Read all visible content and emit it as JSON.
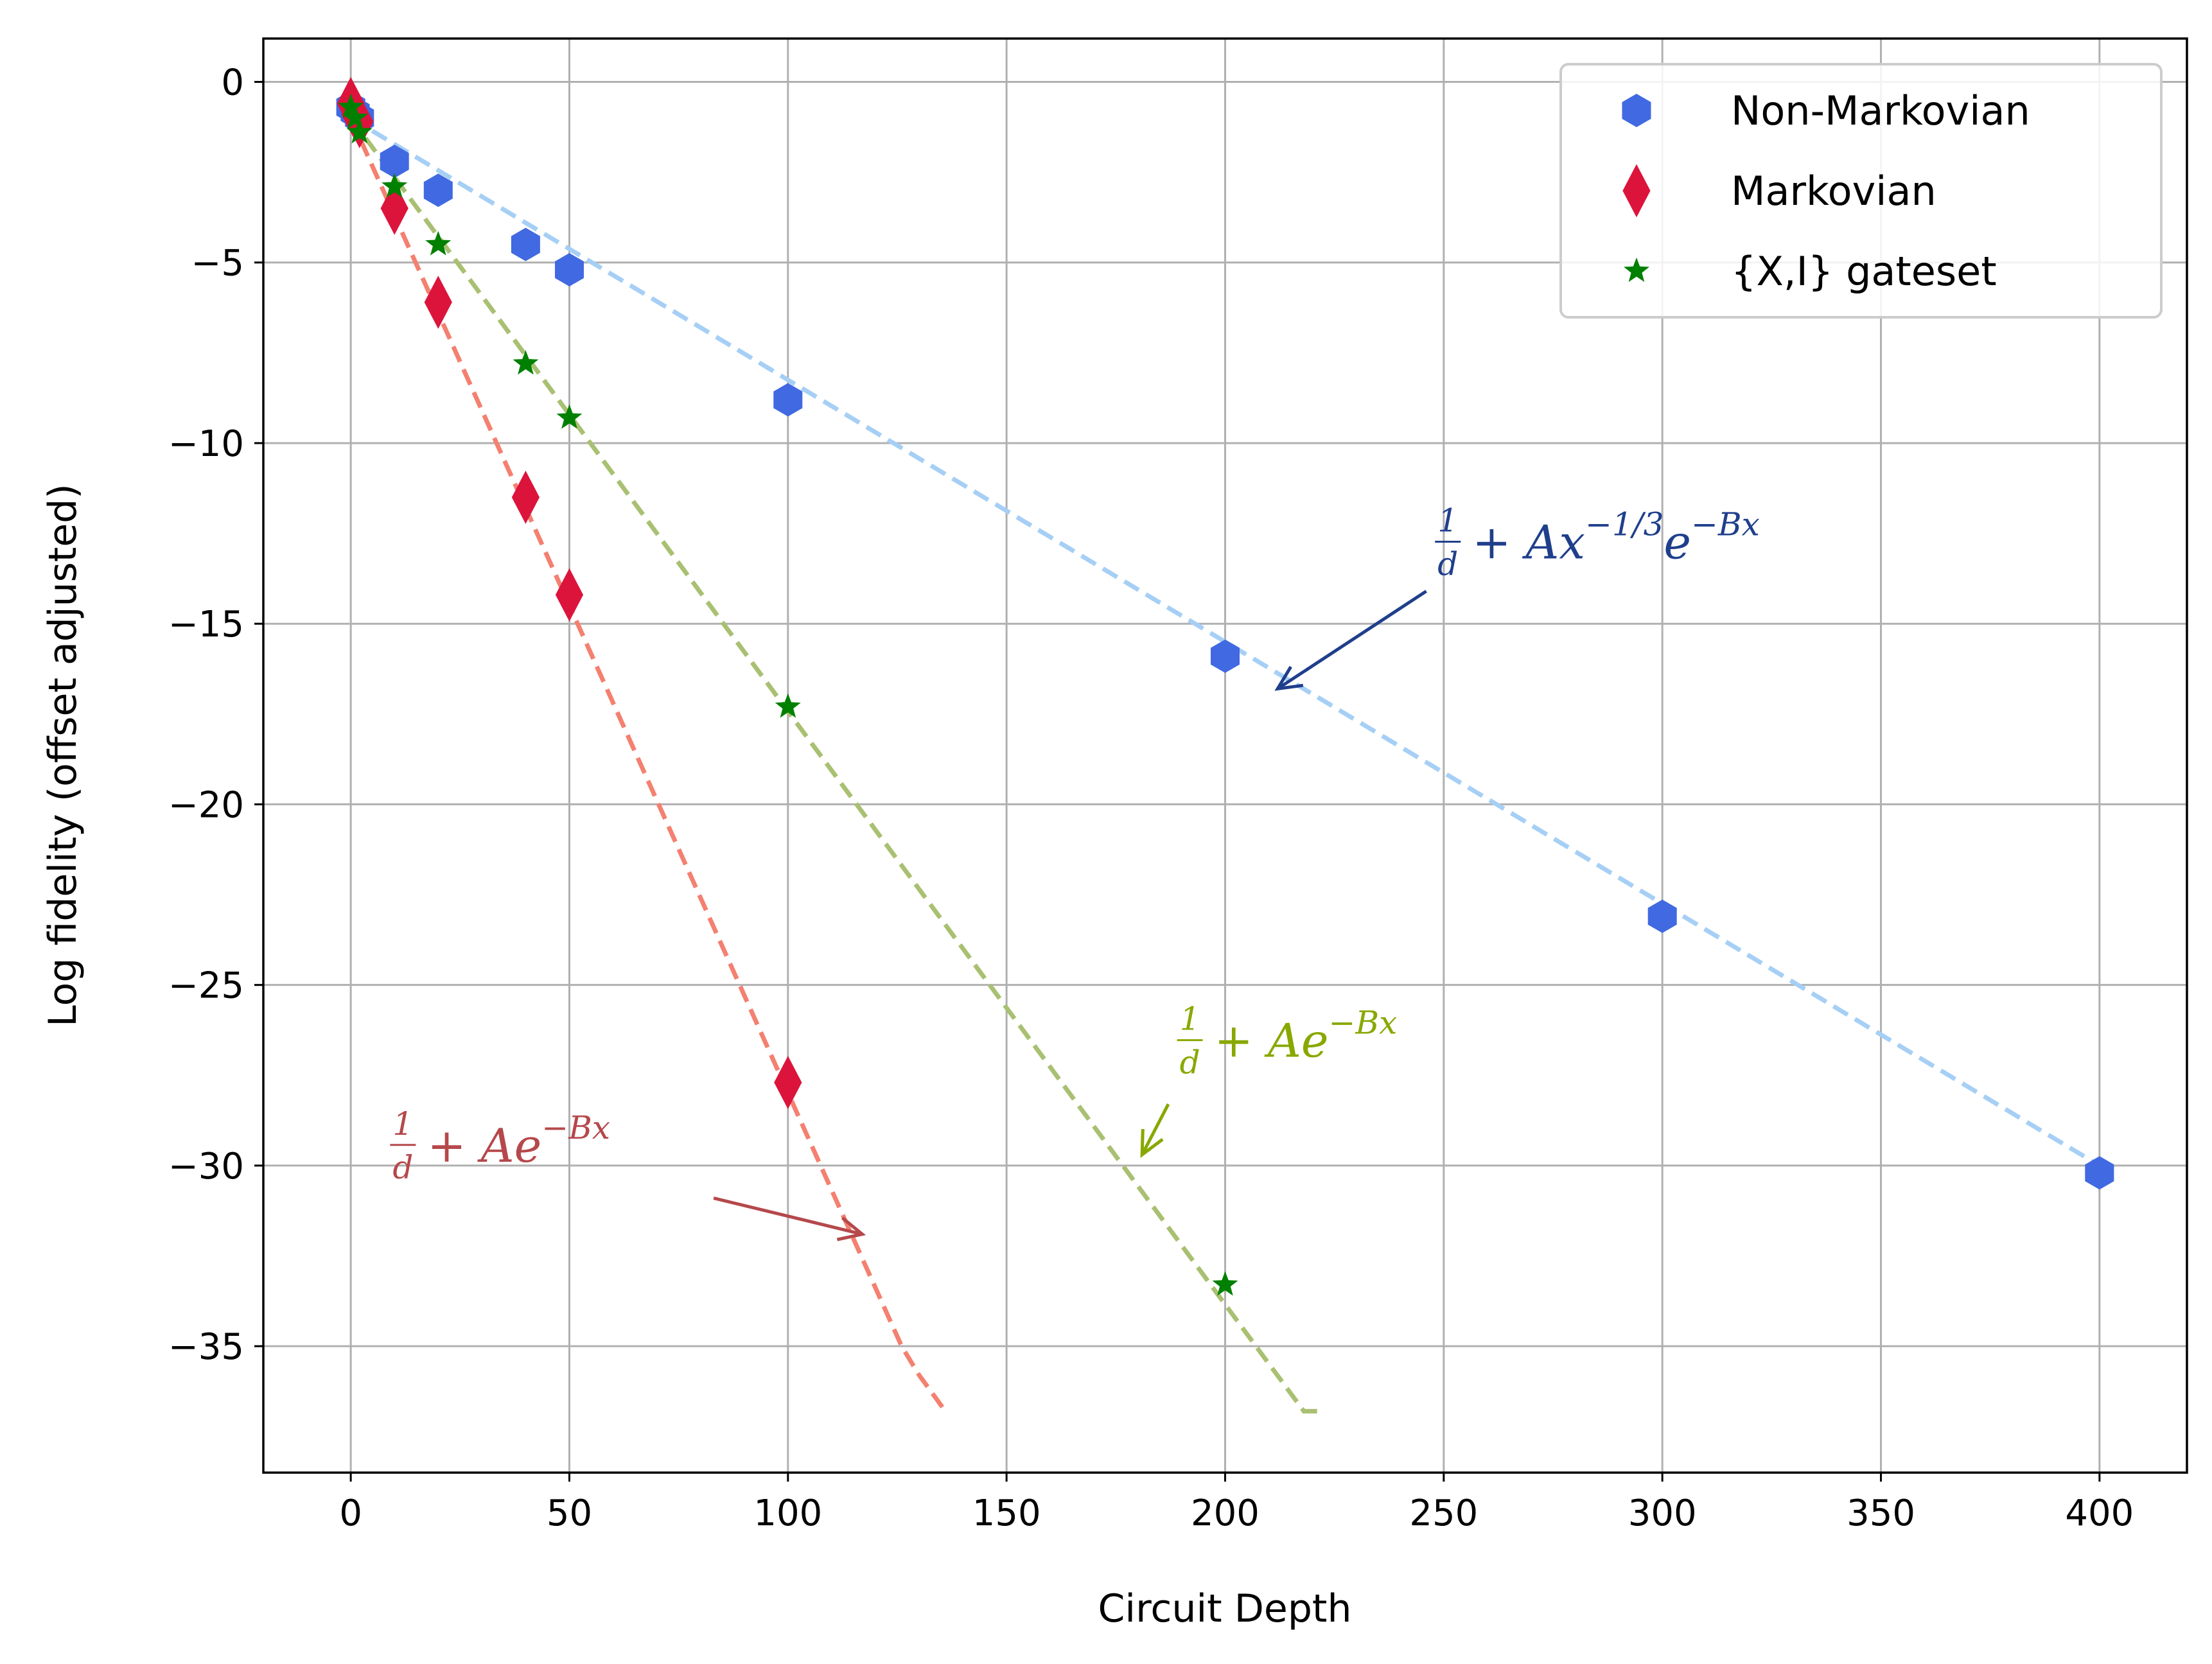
{
  "chart_data": {
    "type": "scatter",
    "title": "",
    "xlabel": "Circuit Depth",
    "ylabel": "Log fidelity (offset adjusted)",
    "xlim": [
      -20,
      420
    ],
    "ylim": [
      -38.5,
      1.2
    ],
    "grid": true,
    "legend_position": "top-right",
    "xticks": [
      0,
      50,
      100,
      150,
      200,
      250,
      300,
      350,
      400
    ],
    "yticks": [
      0,
      -5,
      -10,
      -15,
      -20,
      -25,
      -30,
      -35
    ],
    "xtick_labels": [
      "0",
      "50",
      "100",
      "150",
      "200",
      "250",
      "300",
      "350",
      "400"
    ],
    "ytick_labels": [
      "0",
      "−5",
      "−10",
      "−15",
      "−20",
      "−25",
      "−30",
      "−35"
    ],
    "series": [
      {
        "name": "Non-Markovian",
        "marker": "hexagon",
        "color": "#4169e1",
        "x": [
          0,
          1,
          2,
          10,
          20,
          40,
          50,
          100,
          200,
          300,
          400
        ],
        "y": [
          -0.7,
          -0.85,
          -1.0,
          -2.2,
          -3.0,
          -4.5,
          -5.2,
          -8.8,
          -15.9,
          -23.1,
          -30.2
        ]
      },
      {
        "name": "Markovian",
        "marker": "diamond",
        "color": "#dc143c",
        "x": [
          0,
          1,
          2,
          10,
          20,
          40,
          50,
          100
        ],
        "y": [
          -0.6,
          -0.9,
          -1.1,
          -3.5,
          -6.1,
          -11.5,
          -14.2,
          -27.7
        ]
      },
      {
        "name": "{X,I} gateset",
        "marker": "star",
        "color": "#008000",
        "x": [
          0,
          1,
          2,
          10,
          20,
          40,
          50,
          100,
          200
        ],
        "y": [
          -0.7,
          -1.0,
          -1.4,
          -2.9,
          -4.5,
          -7.8,
          -9.3,
          -17.3,
          -33.3
        ]
      }
    ],
    "fit_lines": [
      {
        "name": "non-markovian-fit",
        "color": "#a6cff5",
        "x": [
          0,
          400
        ],
        "y": [
          -1.0,
          -30.0
        ]
      },
      {
        "name": "markovian-fit",
        "color": "#f48070",
        "x": [
          0,
          126,
          130,
          136
        ],
        "y": [
          -1.0,
          -35.0,
          -35.8,
          -36.8
        ]
      },
      {
        "name": "gateset-fit",
        "color": "#a9c072",
        "x": [
          0,
          218,
          222
        ],
        "y": [
          -1.0,
          -36.8,
          -36.8
        ]
      }
    ],
    "annotations": [
      {
        "name": "non-markovian-formula",
        "color": "#1f3f8c",
        "frac_num": "1",
        "frac_den": "d",
        "text": "+ Ax",
        "sup": "−1/3",
        "text2": "e",
        "sup2": "−Bx",
        "text_at": [
          248,
          -12.8
        ],
        "arrow_from": [
          246,
          -14.1
        ],
        "arrow_to": [
          212,
          -16.8
        ]
      },
      {
        "name": "gateset-formula",
        "color": "#88a800",
        "frac_num": "1",
        "frac_den": "d",
        "text": "+ Ae",
        "sup": "−Bx",
        "text_at": [
          189,
          -26.6
        ],
        "arrow_from": [
          187,
          -28.3
        ],
        "arrow_to": [
          181,
          -29.7
        ]
      },
      {
        "name": "markovian-formula",
        "color": "#b5484b",
        "frac_num": "1",
        "frac_den": "d",
        "text": "+ Ae",
        "sup": "−Bx",
        "text_at": [
          9,
          -29.5
        ],
        "arrow_from": [
          83,
          -30.9
        ],
        "arrow_to": [
          117,
          -31.9
        ]
      }
    ]
  }
}
